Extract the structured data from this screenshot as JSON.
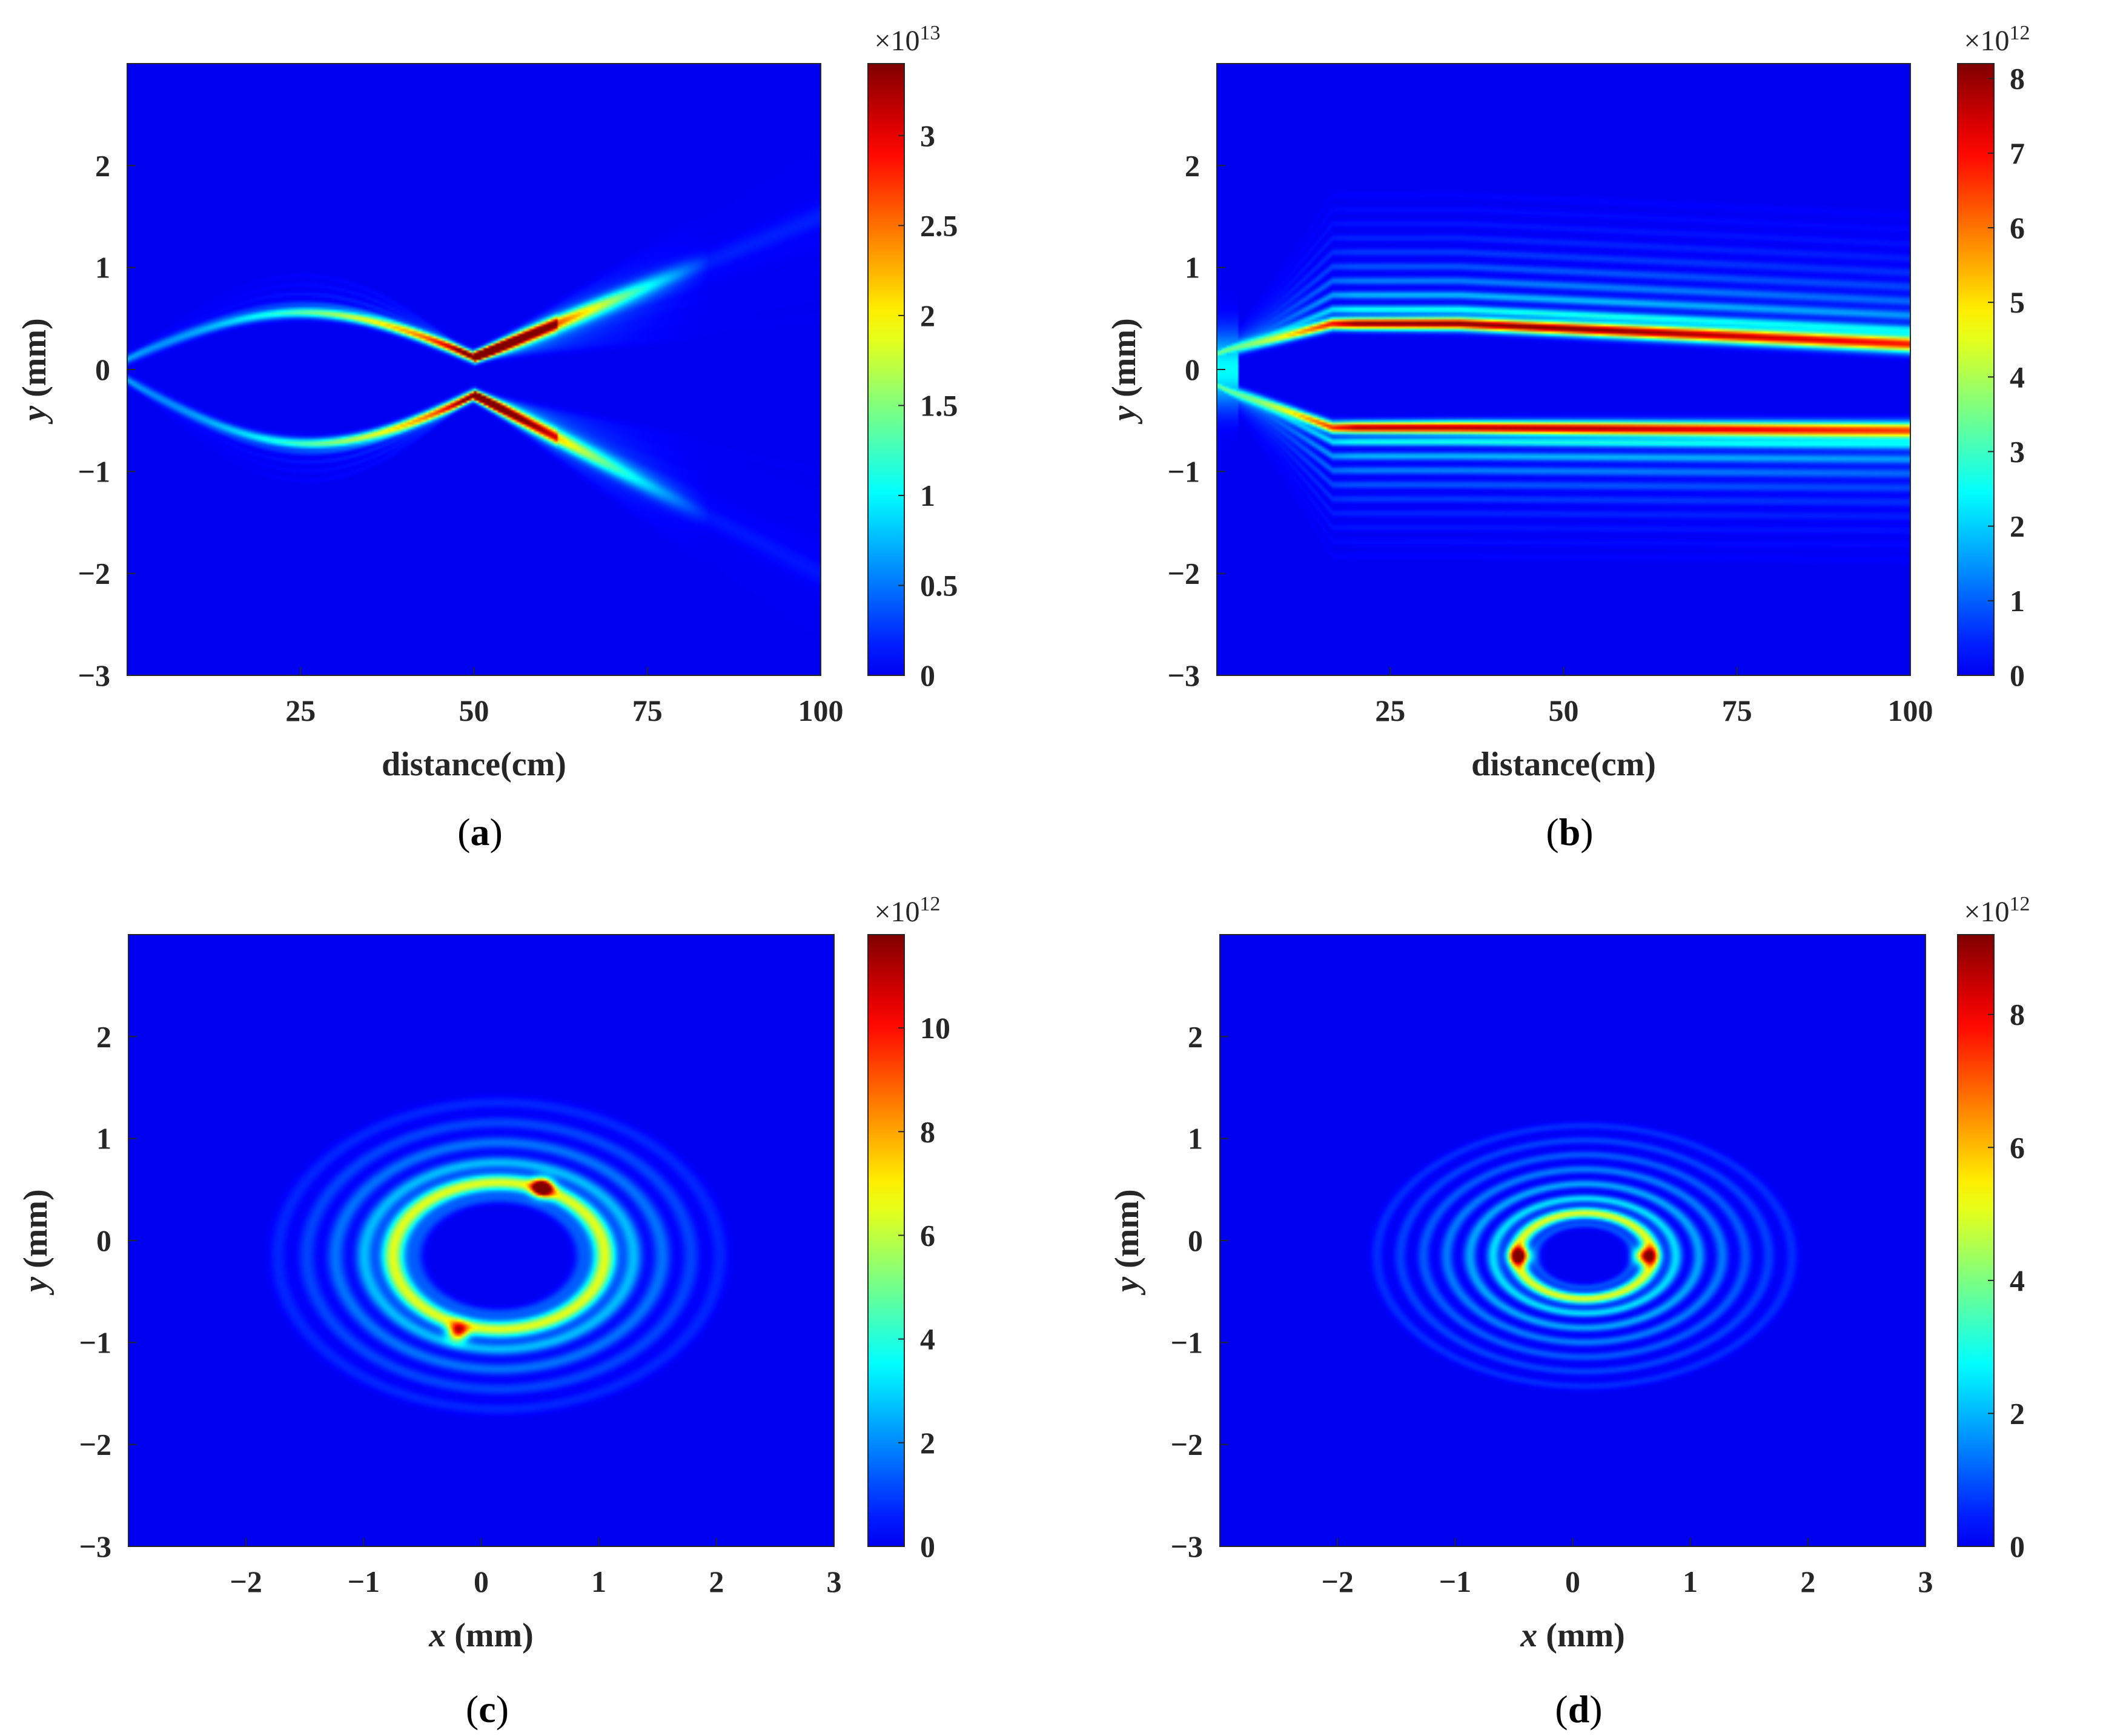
{
  "figure": {
    "panels": [
      {
        "id": "a",
        "caption_open": "(",
        "caption_letter": "a",
        "caption_close": ")",
        "xlabel": "distance(cm)",
        "xlabel_italic_part": "",
        "ylabel": " (mm)",
        "ylabel_italic_part": "y",
        "xticks": [
          "25",
          "50",
          "75",
          "100"
        ],
        "yticks": [
          "2",
          "1",
          "0",
          "−1",
          "−2",
          "−3"
        ],
        "colorbar": {
          "ticks": [
            "3",
            "2.5",
            "2",
            "1.5",
            "1",
            "0.5",
            "0"
          ],
          "exponent_base": "×10",
          "exponent_power": "13"
        }
      },
      {
        "id": "b",
        "caption_open": "(",
        "caption_letter": "b",
        "caption_close": ")",
        "xlabel": "distance(cm)",
        "xlabel_italic_part": "",
        "ylabel": " (mm)",
        "ylabel_italic_part": "y",
        "xticks": [
          "25",
          "50",
          "75",
          "100"
        ],
        "yticks": [
          "2",
          "1",
          "0",
          "−1",
          "−2",
          "−3"
        ],
        "colorbar": {
          "ticks": [
            "8",
            "7",
            "6",
            "5",
            "4",
            "3",
            "2",
            "1",
            "0"
          ],
          "exponent_base": "×10",
          "exponent_power": "12"
        }
      },
      {
        "id": "c",
        "caption_open": "(",
        "caption_letter": "c",
        "caption_close": ")",
        "xlabel": " (mm)",
        "xlabel_italic_part": "x",
        "ylabel": " (mm)",
        "ylabel_italic_part": "y",
        "xticks": [
          "−2",
          "−1",
          "0",
          "1",
          "2",
          "3"
        ],
        "yticks": [
          "2",
          "1",
          "0",
          "−1",
          "−2",
          "−3"
        ],
        "colorbar": {
          "ticks": [
            "10",
            "8",
            "6",
            "4",
            "2",
            "0"
          ],
          "exponent_base": "×10",
          "exponent_power": "12"
        }
      },
      {
        "id": "d",
        "caption_open": "(",
        "caption_letter": "d",
        "caption_close": ")",
        "xlabel": " (mm)",
        "xlabel_italic_part": "x",
        "ylabel": " (mm)",
        "ylabel_italic_part": "y",
        "xticks": [
          "−2",
          "−1",
          "0",
          "1",
          "2",
          "3"
        ],
        "yticks": [
          "2",
          "1",
          "0",
          "−1",
          "−2",
          "−3"
        ],
        "colorbar": {
          "ticks": [
            "8",
            "6",
            "4",
            "2",
            "0"
          ],
          "exponent_base": "×10",
          "exponent_power": "12"
        }
      }
    ]
  },
  "chart_data": [
    {
      "type": "heatmap",
      "panel": "a",
      "title": "",
      "xlabel": "distance(cm)",
      "ylabel": "y (mm)",
      "xlim": [
        0,
        100
      ],
      "ylim": [
        -3,
        3
      ],
      "x_ticks": [
        25,
        50,
        75,
        100
      ],
      "y_ticks": [
        -3,
        -2,
        -1,
        0,
        1,
        2
      ],
      "colormap": "jet",
      "colorbar": {
        "min": 0,
        "max": 3.4,
        "ticks": [
          0,
          0.5,
          1,
          1.5,
          2,
          2.5,
          3
        ],
        "scale_exponent": 13
      },
      "description_features": {
        "upper_branch": {
          "y_start": 0.1,
          "y_max": 0.55,
          "x_at_max": 25,
          "converges_at_x": 50,
          "y_at_focus": 0.12
        },
        "lower_branch": {
          "y_start": -0.1,
          "y_min": -0.65,
          "x_at_min": 27,
          "converges_at_x": 50,
          "y_at_focus": -0.25
        },
        "focus_x": 50,
        "peak_location": {
          "x": 54,
          "y": 0.25,
          "value": 3.4
        },
        "after_focus_upper_y_at_100": 1.5,
        "after_focus_lower_y_at_100": -2.0
      }
    },
    {
      "type": "heatmap",
      "panel": "b",
      "title": "",
      "xlabel": "distance(cm)",
      "ylabel": "y (mm)",
      "xlim": [
        0,
        100
      ],
      "ylim": [
        -3,
        3
      ],
      "x_ticks": [
        25,
        50,
        75,
        100
      ],
      "y_ticks": [
        -3,
        -2,
        -1,
        0,
        1,
        2
      ],
      "colormap": "jet",
      "colorbar": {
        "min": 0,
        "max": 8.2,
        "ticks": [
          0,
          1,
          2,
          3,
          4,
          5,
          6,
          7,
          8
        ],
        "scale_exponent": 12
      },
      "description_features": {
        "upper_main_lobe": {
          "y_start": 0.15,
          "y_mid": 0.45,
          "y_end": 0.25,
          "x_peak": 40
        },
        "lower_main_lobe": {
          "y_start": -0.15,
          "y_mid": -0.57,
          "y_end": -0.6,
          "x_peak": 45
        },
        "peak_value": 8.2
      }
    },
    {
      "type": "heatmap",
      "panel": "c",
      "title": "",
      "xlabel": "x (mm)",
      "ylabel": "y (mm)",
      "xlim": [
        -3,
        3
      ],
      "ylim": [
        -3,
        3
      ],
      "x_ticks": [
        -2,
        -1,
        0,
        1,
        2,
        3
      ],
      "y_ticks": [
        -3,
        -2,
        -1,
        0,
        1,
        2
      ],
      "colormap": "jet",
      "colorbar": {
        "min": 0,
        "max": 11.8,
        "ticks": [
          0,
          2,
          4,
          6,
          8,
          10
        ],
        "scale_exponent": 12
      },
      "description_features": {
        "main_ring": {
          "center": [
            0.15,
            -0.15
          ],
          "radius_x": 0.9,
          "radius_y": 0.72
        },
        "hot_spots": [
          {
            "x": 0.52,
            "y": 0.52,
            "value": 11.8
          },
          {
            "x": -0.2,
            "y": -0.9,
            "value": 8
          }
        ]
      }
    },
    {
      "type": "heatmap",
      "panel": "d",
      "title": "",
      "xlabel": "x (mm)",
      "ylabel": "y (mm)",
      "xlim": [
        -3,
        3
      ],
      "ylim": [
        -3,
        3
      ],
      "x_ticks": [
        -2,
        -1,
        0,
        1,
        2,
        3
      ],
      "y_ticks": [
        -3,
        -2,
        -1,
        0,
        1,
        2
      ],
      "colormap": "jet",
      "colorbar": {
        "min": 0,
        "max": 9.2,
        "ticks": [
          0,
          2,
          4,
          6,
          8
        ],
        "scale_exponent": 12
      },
      "description_features": {
        "main_ring": {
          "center": [
            0.1,
            -0.15
          ],
          "radius_x": 0.58,
          "radius_y": 0.42
        },
        "hot_spots": [
          {
            "x": -0.45,
            "y": -0.15,
            "value": 9.2
          },
          {
            "x": 0.62,
            "y": -0.15,
            "value": 9
          }
        ]
      }
    }
  ]
}
